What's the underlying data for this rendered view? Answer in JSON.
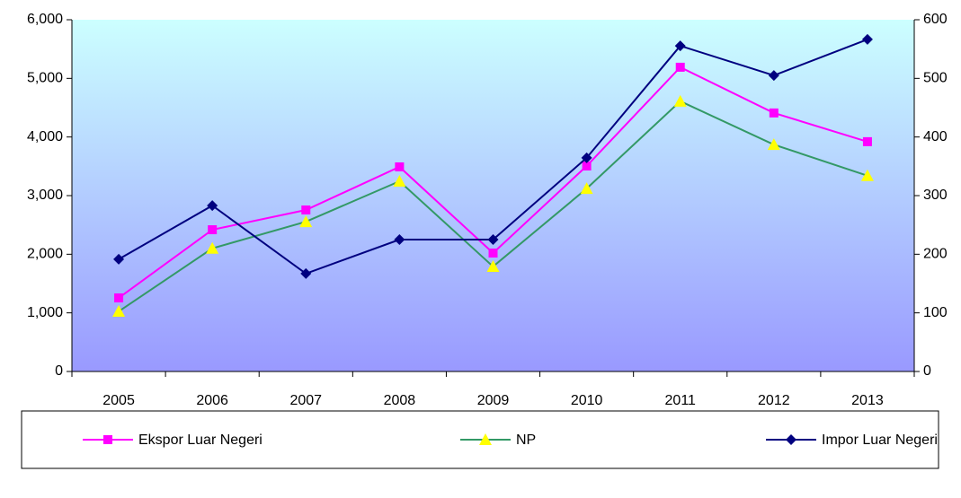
{
  "chart_data": {
    "type": "line",
    "categories": [
      "2005",
      "2006",
      "2007",
      "2008",
      "2009",
      "2010",
      "2011",
      "2012",
      "2013"
    ],
    "series": [
      {
        "name": "Ekspor Luar Negeri",
        "color": "#ff00ff",
        "marker_color": "#ff00ff",
        "marker": "square",
        "values": [
          1255,
          2418,
          2755,
          3490,
          2020,
          3505,
          5190,
          4410,
          3920
        ]
      },
      {
        "name": "NP",
        "color": "#339966",
        "marker_color": "#ffff00",
        "marker": "triangle",
        "values": [
          1025,
          2100,
          2555,
          3245,
          1790,
          3120,
          4610,
          3870,
          3340
        ]
      },
      {
        "name": "Impor Luar Negeri",
        "color": "#000080",
        "marker_color": "#000080",
        "marker": "diamond",
        "values": [
          1915,
          2830,
          1670,
          2250,
          2250,
          3645,
          5555,
          5050,
          5665
        ]
      }
    ],
    "ylim": [
      0,
      6000
    ],
    "yticks": [
      0,
      {
        "value": 1000,
        "label": "1,000"
      },
      {
        "value": 2000,
        "label": "2,000"
      },
      {
        "value": 3000,
        "label": "3,000"
      },
      {
        "value": 4000,
        "label": "4,000"
      },
      {
        "value": 5000,
        "label": "5,000"
      },
      {
        "value": 6000,
        "label": "6,000"
      }
    ],
    "y2lim": [
      0,
      600
    ],
    "y2ticks": [
      0,
      100,
      200,
      300,
      400,
      500,
      600
    ],
    "legend": "bottom"
  }
}
